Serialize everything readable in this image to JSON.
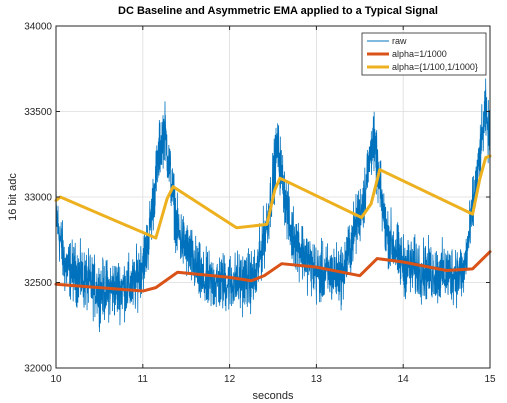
{
  "chart_data": {
    "type": "line",
    "title": "DC Baseline and Asymmetric EMA applied to a Typical Signal",
    "xlabel": "seconds",
    "ylabel": "16 bit adc",
    "xlim": [
      10,
      15
    ],
    "ylim": [
      32000,
      34000
    ],
    "xticks": [
      "10",
      "11",
      "12",
      "13",
      "14",
      "15"
    ],
    "yticks": [
      "32000",
      "32500",
      "33000",
      "33500",
      "34000"
    ],
    "grid": true,
    "legend_position": "top-right",
    "colors": {
      "raw": "#0072bd",
      "alpha_slow": "#d95319",
      "alpha_asym": "#edb120"
    },
    "series": [
      {
        "name": "raw",
        "description_points": {
          "x": [
            10.0,
            10.1,
            10.5,
            10.9,
            11.05,
            11.2,
            11.25,
            11.4,
            11.7,
            12.0,
            12.3,
            12.45,
            12.55,
            12.7,
            13.0,
            13.3,
            13.55,
            13.65,
            13.8,
            14.0,
            14.4,
            14.7,
            14.85,
            14.95,
            15.0
          ],
          "y": [
            32900,
            32600,
            32450,
            32480,
            32700,
            33300,
            33400,
            32800,
            32500,
            32500,
            32520,
            32900,
            33300,
            32800,
            32550,
            32550,
            33000,
            33350,
            32800,
            32600,
            32550,
            32560,
            33100,
            33500,
            33300
          ]
        },
        "noise_amplitude": 130
      },
      {
        "name": "alpha=1/1000",
        "x": [
          10.0,
          10.5,
          11.0,
          11.15,
          11.4,
          12.0,
          12.25,
          12.4,
          12.6,
          13.0,
          13.5,
          13.7,
          14.0,
          14.5,
          14.8,
          15.0
        ],
        "y": [
          32490,
          32470,
          32450,
          32470,
          32560,
          32530,
          32510,
          32540,
          32610,
          32590,
          32540,
          32640,
          32620,
          32570,
          32580,
          32680
        ]
      },
      {
        "name": "alpha={1/100,1/1000}",
        "x": [
          10.0,
          10.05,
          11.15,
          11.28,
          11.35,
          12.08,
          12.43,
          12.52,
          12.58,
          13.52,
          13.63,
          13.73,
          14.8,
          14.88,
          14.95,
          15.0
        ],
        "y": [
          32980,
          33000,
          32760,
          32990,
          33060,
          32820,
          32840,
          33040,
          33110,
          32880,
          32960,
          33160,
          32900,
          33100,
          33230,
          33240
        ]
      }
    ]
  }
}
